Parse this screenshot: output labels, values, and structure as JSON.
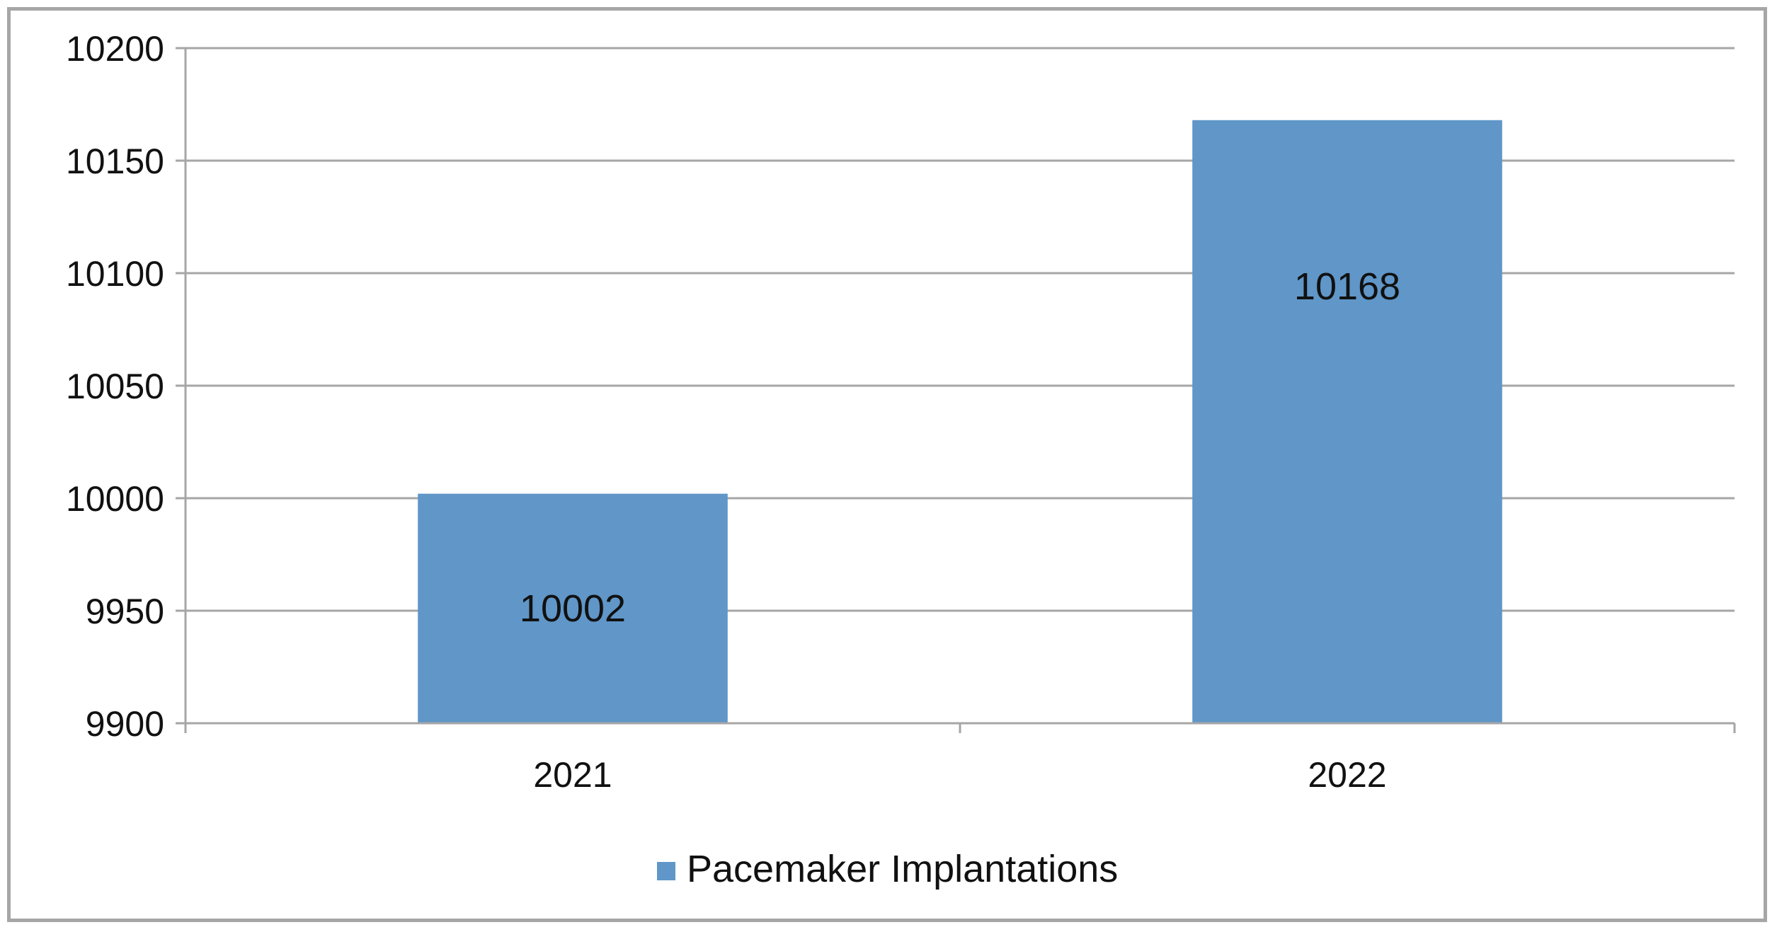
{
  "chart_data": {
    "type": "bar",
    "categories": [
      "2021",
      "2022"
    ],
    "series": [
      {
        "name": "Pacemaker Implantations",
        "values": [
          10002,
          10168
        ],
        "color": "#6096c8"
      }
    ],
    "ylim": [
      9900,
      10200
    ],
    "ytick_step": 50,
    "ytick_labels": [
      "9900",
      "9950",
      "10000",
      "10050",
      "10100",
      "10150",
      "10200"
    ],
    "data_labels": [
      "10002",
      "10168"
    ],
    "grid": true,
    "gridline_color": "#a6a6a6",
    "axis_color": "#a6a6a6",
    "legend_position": "bottom",
    "title": "",
    "xlabel": "",
    "ylabel": ""
  }
}
